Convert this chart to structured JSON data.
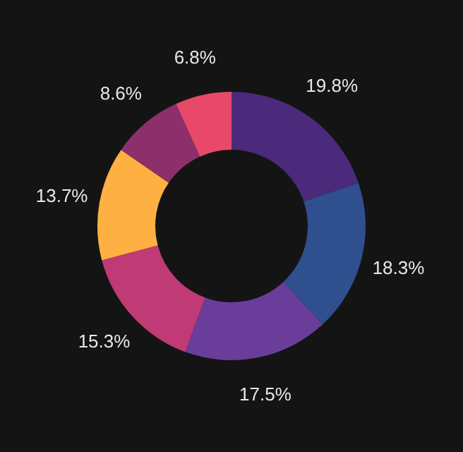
{
  "chart_data": {
    "type": "donut",
    "categories": [
      null,
      null,
      null,
      null,
      null,
      null,
      null
    ],
    "values": [
      19.8,
      18.3,
      17.5,
      15.3,
      13.7,
      8.6,
      6.8
    ],
    "colors": [
      "#4b2a7b",
      "#2f4f8f",
      "#6a3d9a",
      "#c03a76",
      "#ffb043",
      "#8c2f6a",
      "#e8486a"
    ],
    "value_labels": [
      "19.8%",
      "18.3%",
      "17.5%",
      "15.3%",
      "13.7%",
      "8.6%",
      "6.8%"
    ]
  }
}
